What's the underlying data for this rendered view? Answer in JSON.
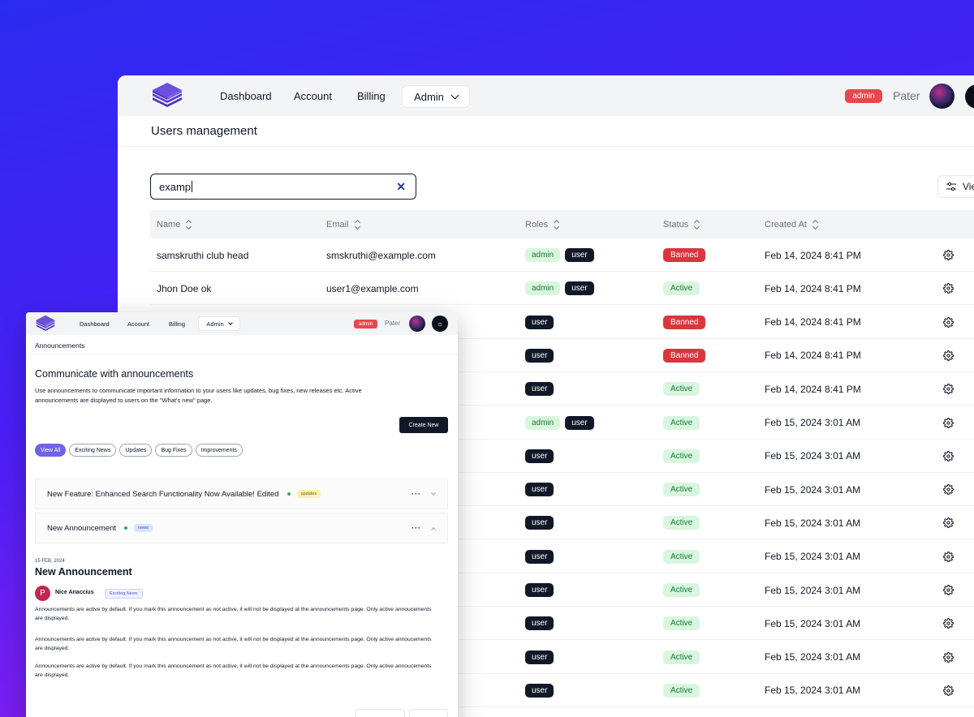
{
  "colors": {
    "accent": "#6f63e6",
    "danger": "#e5484d",
    "success_bg": "#d8f6de",
    "success_fg": "#1b7a3a",
    "dark": "#111827"
  },
  "main": {
    "nav": {
      "links": [
        "Dashboard",
        "Account",
        "Billing"
      ],
      "admin_menu": "Admin",
      "role_badge": "admin",
      "user_name": "Pater"
    },
    "page_title": "Users management",
    "search": {
      "value": "examp"
    },
    "view_button": "Vie",
    "table": {
      "columns": [
        "Name",
        "Email",
        "Roles",
        "Status",
        "Created At"
      ],
      "rows": [
        {
          "name": "samskruthi club head",
          "email": "smskruthi@example.com",
          "roles": [
            "admin",
            "user"
          ],
          "status": "Banned",
          "created": "Feb 14, 2024 8:41 PM"
        },
        {
          "name": "Jhon Doe ok",
          "email": "user1@example.com",
          "roles": [
            "admin",
            "user"
          ],
          "status": "Active",
          "created": "Feb 14, 2024 8:41 PM"
        },
        {
          "name": "",
          "email": "",
          "roles": [
            "user"
          ],
          "status": "Banned",
          "created": "Feb 14, 2024 8:41 PM"
        },
        {
          "name": "",
          "email": "",
          "roles": [
            "user"
          ],
          "status": "Banned",
          "created": "Feb 14, 2024 8:41 PM"
        },
        {
          "name": "",
          "email": "",
          "roles": [
            "user"
          ],
          "status": "Active",
          "created": "Feb 14, 2024 8:41 PM"
        },
        {
          "name": "",
          "email": "",
          "roles": [
            "admin",
            "user"
          ],
          "status": "Active",
          "created": "Feb 15, 2024 3:01 AM"
        },
        {
          "name": "",
          "email": "",
          "roles": [
            "user"
          ],
          "status": "Active",
          "created": "Feb 15, 2024 3:01 AM"
        },
        {
          "name": "",
          "email": "",
          "roles": [
            "user"
          ],
          "status": "Active",
          "created": "Feb 15, 2024 3:01 AM"
        },
        {
          "name": "",
          "email": "",
          "roles": [
            "user"
          ],
          "status": "Active",
          "created": "Feb 15, 2024 3:01 AM"
        },
        {
          "name": "",
          "email": "",
          "roles": [
            "user"
          ],
          "status": "Active",
          "created": "Feb 15, 2024 3:01 AM"
        },
        {
          "name": "",
          "email": "",
          "roles": [
            "user"
          ],
          "status": "Active",
          "created": "Feb 15, 2024 3:01 AM"
        },
        {
          "name": "",
          "email": "",
          "roles": [
            "user"
          ],
          "status": "Active",
          "created": "Feb 15, 2024 3:01 AM"
        },
        {
          "name": "",
          "email": "",
          "roles": [
            "user"
          ],
          "status": "Active",
          "created": "Feb 15, 2024 3:01 AM"
        },
        {
          "name": "",
          "email": "",
          "roles": [
            "user"
          ],
          "status": "Active",
          "created": "Feb 15, 2024 3:01 AM"
        }
      ]
    }
  },
  "announcements": {
    "nav": {
      "links": [
        "Dashboard",
        "Account",
        "Billing"
      ],
      "admin_menu": "Admin",
      "role_badge": "admin",
      "user_name": "Pater"
    },
    "breadcrumb": "Announcements",
    "heading": "Communicate with announcements",
    "description": "Use announcements to communicate important information to your users like updates, bug fixes, new releases etc. Active announcements are displayed to users on the \"What's new\" page.",
    "create_button": "Create New",
    "filters": [
      "View All",
      "Exciting News",
      "Updates",
      "Bug Fixes",
      "Improvements"
    ],
    "items": [
      {
        "title": "New Feature: Enhanced Search Functionality Now Available! Edited",
        "tag": "updates"
      },
      {
        "title": "New Announcement",
        "tag": "news"
      }
    ],
    "detail": {
      "date": "15 FEB, 2024",
      "title": "New Announcement",
      "author_initial": "P",
      "author": "Nice Anaccius",
      "category": "Exciting News",
      "paragraphs": [
        "Announcements are active by default. If you mark this announcement as not active, it will not be displayed at the announcements page. Only active annoucements are displayed.",
        "Announcements are active by default. If you mark this announcement as not active, it will not be displayed at the announcements page. Only active annoucements are displayed.",
        "Announcements are active by default. If you mark this announcement as not active, it will not be displayed at the announcements page. Only active annoucements are displayed."
      ]
    }
  }
}
